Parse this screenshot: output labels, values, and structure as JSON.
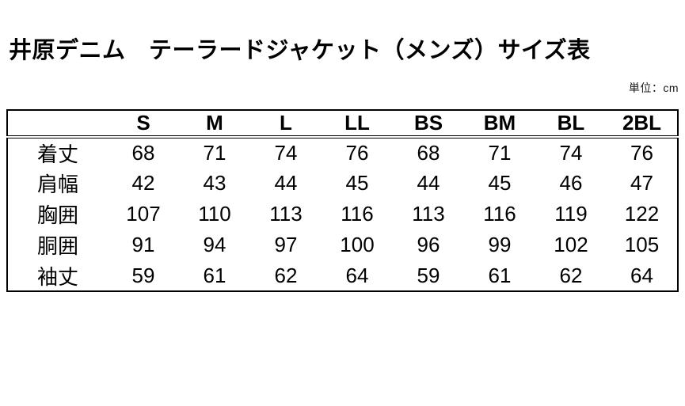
{
  "page": {
    "title": "井原デニム　テーラードジャケット（メンズ）サイズ表",
    "unit_label": "単位：cm"
  },
  "table": {
    "corner_label": "",
    "columns": [
      "S",
      "M",
      "L",
      "LL",
      "BS",
      "BM",
      "BL",
      "2BL"
    ],
    "rows": [
      {
        "label": "着丈",
        "values": [
          68,
          71,
          74,
          76,
          68,
          71,
          74,
          76
        ]
      },
      {
        "label": "肩幅",
        "values": [
          42,
          43,
          44,
          45,
          44,
          45,
          46,
          47
        ]
      },
      {
        "label": "胸囲",
        "values": [
          107,
          110,
          113,
          116,
          113,
          116,
          119,
          122
        ]
      },
      {
        "label": "胴囲",
        "values": [
          91,
          94,
          97,
          100,
          96,
          99,
          102,
          105
        ]
      },
      {
        "label": "袖丈",
        "values": [
          59,
          61,
          62,
          64,
          59,
          61,
          62,
          64
        ]
      }
    ]
  },
  "colors": {
    "background": "#ffffff",
    "text": "#000000",
    "border": "#000000"
  }
}
